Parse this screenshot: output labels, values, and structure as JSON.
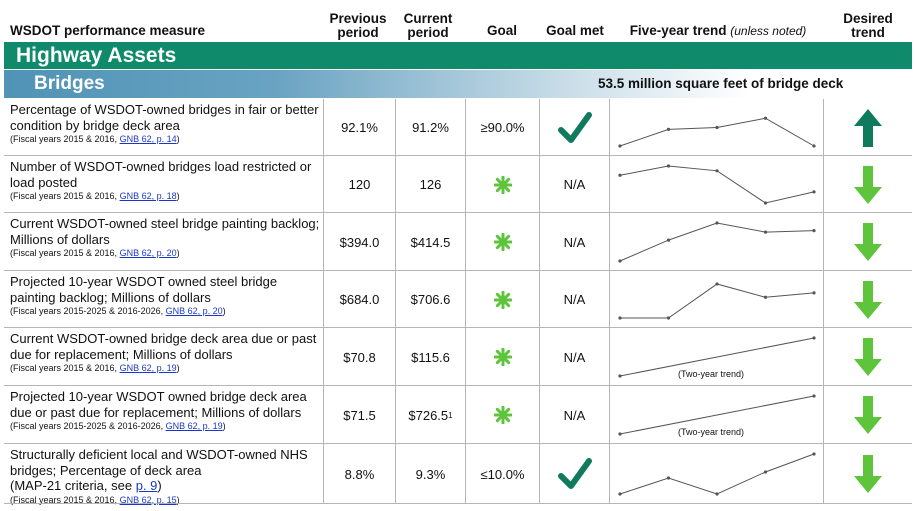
{
  "header": {
    "measure": "WSDOT performance measure",
    "previous_line1": "Previous",
    "previous_line2": "period",
    "current_line1": "Current",
    "current_line2": "period",
    "goal": "Goal",
    "goal_met": "Goal met",
    "trend": "Five-year trend",
    "trend_note": "(unless noted)",
    "desired_line1": "Desired",
    "desired_line2": "trend"
  },
  "section": {
    "title": "Highway Assets",
    "subsection": "Bridges",
    "note": "53.5 million square feet of bridge deck"
  },
  "colors": {
    "band_green": "#0f8a6a",
    "check": "#0f7a5e",
    "arrow_up": "#0f7a5e",
    "arrow_down": "#5ec43c",
    "asterisk": "#5ec43c"
  },
  "rows": [
    {
      "measure": "Percentage of WSDOT-owned bridges in fair or better condition by bridge deck area",
      "source": "(Fiscal years 2015 & 2016, ",
      "link": "GNB 62, p. 14",
      "source_end": ")",
      "previous": "92.1%",
      "current": "91.2%",
      "goal": "≥90.0%",
      "goal_met": "check-icon",
      "desired": "arrow-up-icon",
      "trend": [
        0.0,
        0.45,
        0.5,
        0.75,
        0.0
      ],
      "trend_note": ""
    },
    {
      "measure": "Number of WSDOT-owned bridges load restricted or load posted",
      "source": "(Fiscal years 2015 & 2016, ",
      "link": "GNB 62, p. 18",
      "source_end": ")",
      "previous": "120",
      "current": "126",
      "goal": "asterisk-icon",
      "goal_met": "N/A",
      "desired": "arrow-down-icon",
      "trend": [
        0.75,
        1.0,
        0.87,
        0.0,
        0.3
      ],
      "trend_note": ""
    },
    {
      "measure": "Current WSDOT-owned steel bridge painting backlog; Millions of dollars",
      "source": "(Fiscal years 2015 & 2016, ",
      "link": "GNB 62, p. 20",
      "source_end": ")",
      "previous": "$394.0",
      "current": "$414.5",
      "goal": "asterisk-icon",
      "goal_met": "N/A",
      "desired": "arrow-down-icon",
      "trend": [
        0.0,
        0.55,
        1.0,
        0.76,
        0.8
      ],
      "trend_note": ""
    },
    {
      "measure": "Projected 10-year WSDOT owned steel bridge painting backlog; Millions of dollars",
      "source": "(Fiscal years 2015-2025 & 2016-2026, ",
      "link": "GNB 62, p. 20",
      "source_end": ")",
      "previous": "$684.0",
      "current": "$706.6",
      "goal": "asterisk-icon",
      "goal_met": "N/A",
      "desired": "arrow-down-icon",
      "trend": [
        0.0,
        0.0,
        0.92,
        0.56,
        0.68
      ],
      "trend_note": ""
    },
    {
      "measure": "Current WSDOT-owned bridge deck area due or past due for replacement; Millions of dollars",
      "source": "(Fiscal years 2015 & 2016, ",
      "link": "GNB 62, p. 19",
      "source_end": ")",
      "previous": "$70.8",
      "current": "$115.6",
      "goal": "asterisk-icon",
      "goal_met": "N/A",
      "desired": "arrow-down-icon",
      "trend": [
        0.0,
        1.0
      ],
      "trend_note": "(Two-year trend)"
    },
    {
      "measure": "Projected 10-year WSDOT owned bridge deck area due or past due for replacement; Millions of dollars",
      "source": "(Fiscal years 2015-2025 & 2016-2026, ",
      "link": "GNB 62, p. 19",
      "source_end": ")",
      "previous": "$71.5",
      "current": "$726.5",
      "current_sup": "1",
      "goal": "asterisk-icon",
      "goal_met": "N/A",
      "desired": "arrow-down-icon",
      "trend": [
        0.0,
        1.0
      ],
      "trend_note": "(Two-year trend)"
    },
    {
      "measure": "Structurally deficient local and WSDOT-owned NHS bridges; Percentage of deck area",
      "measure_extra": "(MAP-21 criteria, see ",
      "measure_link": "p. 9",
      "measure_extra_end": ")",
      "source": "(Fiscal years 2015 & 2016, ",
      "link": "GNB 62, p. 15",
      "source_end": ")",
      "previous": "8.8%",
      "current": "9.3%",
      "goal": "≤10.0%",
      "goal_met": "check-icon",
      "desired": "arrow-down-icon",
      "trend": [
        0.0,
        0.4,
        0.0,
        0.55,
        1.0
      ],
      "trend_note": ""
    }
  ]
}
